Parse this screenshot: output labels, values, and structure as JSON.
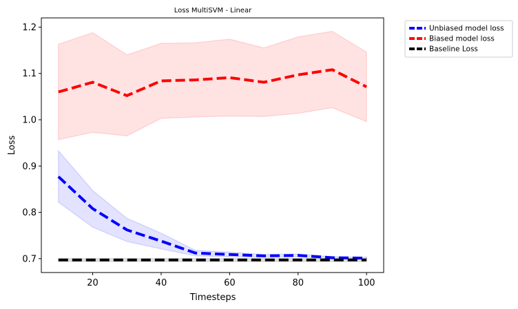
{
  "chart_data": {
    "type": "line",
    "title": "Loss MultiSVM - Linear",
    "xlabel": "Timesteps",
    "ylabel": "Loss",
    "xlim": [
      5,
      105
    ],
    "ylim": [
      0.67,
      1.22
    ],
    "x": [
      10,
      20,
      30,
      40,
      50,
      60,
      70,
      80,
      90,
      100
    ],
    "xticks": [
      20,
      40,
      60,
      80,
      100
    ],
    "yticks": [
      0.7,
      0.8,
      0.9,
      1.0,
      1.1,
      1.2
    ],
    "ytick_labels": [
      "0.7",
      "0.8",
      "0.9",
      "1.0",
      "1.1",
      "1.2"
    ],
    "grid": false,
    "legend_position": "outside-top-right",
    "series": [
      {
        "name": "Unbiased model loss",
        "color": "#0000ff",
        "band_color": "#0000ff",
        "style": "dashed",
        "values": [
          0.877,
          0.808,
          0.762,
          0.738,
          0.712,
          0.709,
          0.706,
          0.707,
          0.702,
          0.701
        ],
        "lower": [
          0.822,
          0.768,
          0.737,
          0.721,
          0.706,
          0.704,
          0.703,
          0.704,
          0.7,
          0.699
        ],
        "upper": [
          0.933,
          0.847,
          0.787,
          0.755,
          0.718,
          0.714,
          0.709,
          0.71,
          0.704,
          0.703
        ]
      },
      {
        "name": "Biased model loss",
        "color": "#ff0000",
        "band_color": "#ff0000",
        "style": "dashed",
        "values": [
          1.06,
          1.081,
          1.052,
          1.084,
          1.086,
          1.091,
          1.081,
          1.097,
          1.108,
          1.071
        ],
        "lower": [
          0.957,
          0.973,
          0.965,
          1.003,
          1.006,
          1.008,
          1.007,
          1.014,
          1.026,
          0.996
        ],
        "upper": [
          1.163,
          1.188,
          1.14,
          1.165,
          1.166,
          1.174,
          1.155,
          1.179,
          1.191,
          1.146
        ]
      },
      {
        "name": "Baseline Loss",
        "color": "#000000",
        "band_color": "#000000",
        "style": "dashed",
        "values": [
          0.697,
          0.697,
          0.697,
          0.697,
          0.697,
          0.697,
          0.697,
          0.697,
          0.697,
          0.697
        ],
        "lower": [
          0.694,
          0.694,
          0.694,
          0.694,
          0.694,
          0.694,
          0.694,
          0.694,
          0.694,
          0.694
        ],
        "upper": [
          0.7,
          0.7,
          0.7,
          0.7,
          0.7,
          0.7,
          0.7,
          0.7,
          0.7,
          0.7
        ]
      }
    ]
  }
}
